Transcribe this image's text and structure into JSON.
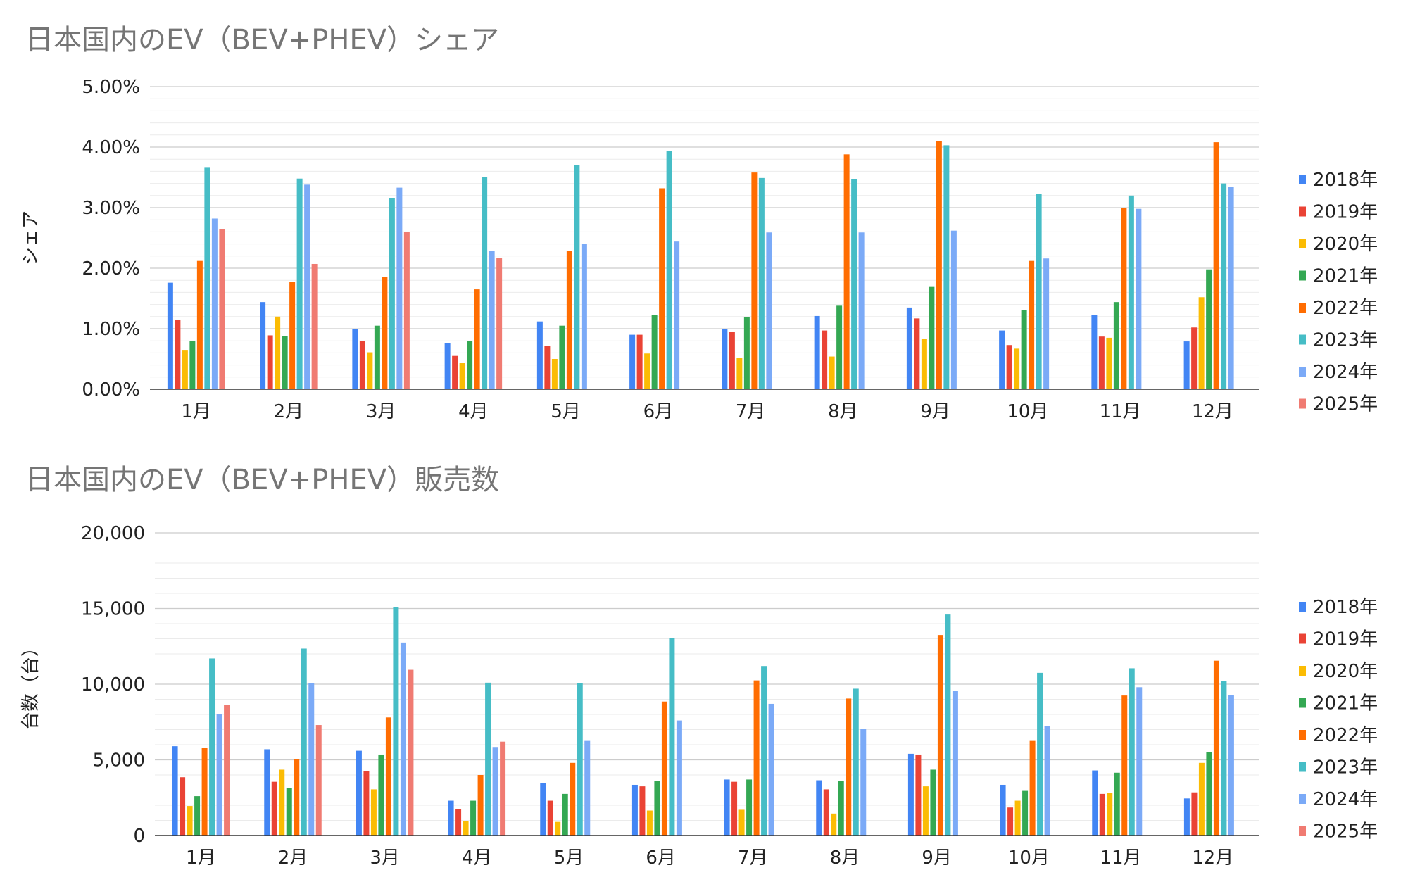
{
  "chart_data": [
    {
      "type": "bar",
      "title": "日本国内のEV（BEV+PHEV）シェア",
      "xlabel": "",
      "ylabel": "シェア",
      "ylim": [
        0,
        0.05
      ],
      "y_ticks": [
        "0.00%",
        "1.00%",
        "2.00%",
        "3.00%",
        "4.00%",
        "5.00%"
      ],
      "grid": true,
      "legend_position": "right",
      "categories": [
        "1月",
        "2月",
        "3月",
        "4月",
        "5月",
        "6月",
        "7月",
        "8月",
        "9月",
        "10月",
        "11月",
        "12月"
      ],
      "series": [
        {
          "name": "2018年",
          "color": "#4285F4",
          "values": [
            0.0176,
            0.0144,
            0.01,
            0.0076,
            0.0112,
            0.009,
            0.01,
            0.0121,
            0.0135,
            0.0097,
            0.0123,
            0.0079
          ]
        },
        {
          "name": "2019年",
          "color": "#EA4335",
          "values": [
            0.0115,
            0.0089,
            0.008,
            0.0055,
            0.0072,
            0.009,
            0.0095,
            0.0097,
            0.0117,
            0.0073,
            0.0087,
            0.0102
          ]
        },
        {
          "name": "2020年",
          "color": "#FBBC04",
          "values": [
            0.0065,
            0.012,
            0.0061,
            0.0043,
            0.005,
            0.0059,
            0.0052,
            0.0054,
            0.0083,
            0.0067,
            0.0085,
            0.0152
          ]
        },
        {
          "name": "2021年",
          "color": "#34A853",
          "values": [
            0.008,
            0.0088,
            0.0105,
            0.008,
            0.0105,
            0.0123,
            0.0119,
            0.0138,
            0.0169,
            0.0131,
            0.0144,
            0.0198
          ]
        },
        {
          "name": "2022年",
          "color": "#FF6D01",
          "values": [
            0.0212,
            0.0177,
            0.0185,
            0.0165,
            0.0228,
            0.0332,
            0.0358,
            0.0388,
            0.041,
            0.0212,
            0.03,
            0.0408
          ]
        },
        {
          "name": "2023年",
          "color": "#46BDC6",
          "values": [
            0.0367,
            0.0348,
            0.0316,
            0.0351,
            0.037,
            0.0394,
            0.0349,
            0.0347,
            0.0403,
            0.0323,
            0.032,
            0.034
          ]
        },
        {
          "name": "2024年",
          "color": "#7BAAF7",
          "values": [
            0.0282,
            0.0338,
            0.0333,
            0.0228,
            0.024,
            0.0244,
            0.0259,
            0.0259,
            0.0262,
            0.0216,
            0.0298,
            0.0334
          ]
        },
        {
          "name": "2025年",
          "color": "#F07B72",
          "values": [
            0.0265,
            0.0207,
            0.026,
            0.0217,
            null,
            null,
            null,
            null,
            null,
            null,
            null,
            null
          ]
        }
      ]
    },
    {
      "type": "bar",
      "title": "日本国内のEV（BEV+PHEV）販売数",
      "xlabel": "",
      "ylabel": "台数（台）",
      "ylim": [
        0,
        20000
      ],
      "y_ticks": [
        "0",
        "5,000",
        "10,000",
        "15,000",
        "20,000"
      ],
      "grid": true,
      "legend_position": "right",
      "categories": [
        "1月",
        "2月",
        "3月",
        "4月",
        "5月",
        "6月",
        "7月",
        "8月",
        "9月",
        "10月",
        "11月",
        "12月"
      ],
      "series": [
        {
          "name": "2018年",
          "color": "#4285F4",
          "values": [
            5900,
            5700,
            5600,
            2300,
            3450,
            3350,
            3700,
            3650,
            5400,
            3350,
            4300,
            2450
          ]
        },
        {
          "name": "2019年",
          "color": "#EA4335",
          "values": [
            3850,
            3550,
            4250,
            1750,
            2300,
            3250,
            3550,
            3050,
            5350,
            1850,
            2750,
            2850
          ]
        },
        {
          "name": "2020年",
          "color": "#FBBC04",
          "values": [
            1950,
            4350,
            3050,
            950,
            900,
            1650,
            1700,
            1450,
            3250,
            2300,
            2800,
            4800
          ]
        },
        {
          "name": "2021年",
          "color": "#34A853",
          "values": [
            2600,
            3150,
            5350,
            2300,
            2750,
            3600,
            3700,
            3600,
            4350,
            2950,
            4150,
            5500
          ]
        },
        {
          "name": "2022年",
          "color": "#FF6D01",
          "values": [
            5800,
            5050,
            7800,
            4000,
            4800,
            8850,
            10250,
            9050,
            13250,
            6250,
            9250,
            11550
          ]
        },
        {
          "name": "2023年",
          "color": "#46BDC6",
          "values": [
            11700,
            12350,
            15100,
            10100,
            10050,
            13050,
            11200,
            9700,
            14600,
            10750,
            11050,
            10200
          ]
        },
        {
          "name": "2024年",
          "color": "#7BAAF7",
          "values": [
            8000,
            10050,
            12750,
            5850,
            6250,
            7600,
            8700,
            7050,
            9550,
            7250,
            9800,
            9300
          ]
        },
        {
          "name": "2025年",
          "color": "#F07B72",
          "values": [
            8650,
            7300,
            10950,
            6200,
            null,
            null,
            null,
            null,
            null,
            null,
            null,
            null
          ]
        }
      ]
    }
  ]
}
